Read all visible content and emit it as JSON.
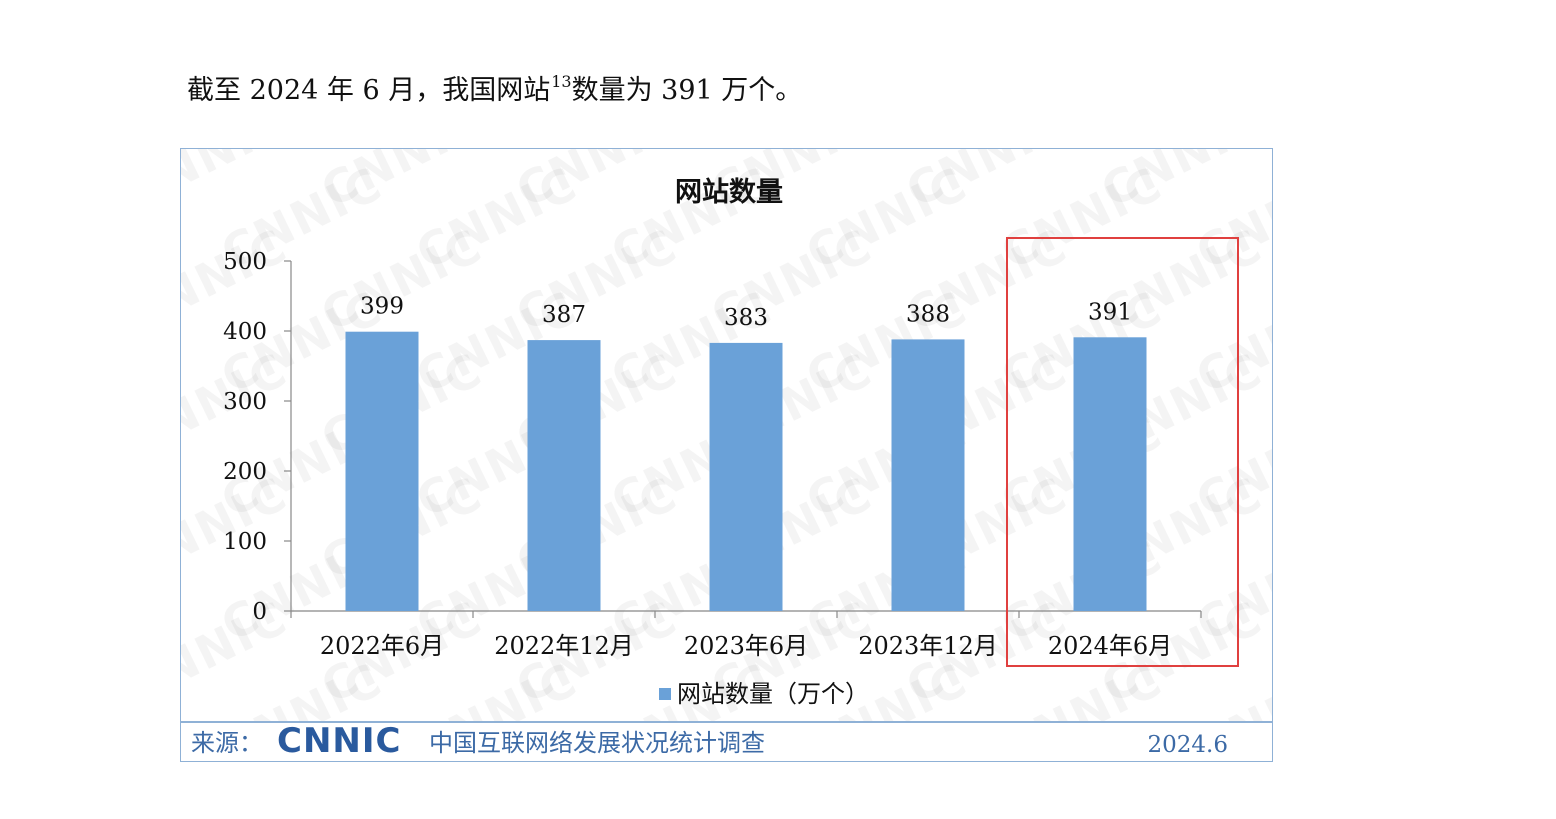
{
  "intro": {
    "text_before": "截至 2024 年 6 月，我国网站",
    "footnote_ref": "13",
    "text_after": "数量为 391 万个。"
  },
  "watermark": {
    "text": "CNNIC"
  },
  "chart_data": {
    "type": "bar",
    "title": "网站数量",
    "categories": [
      "2022年6月",
      "2022年12月",
      "2023年6月",
      "2023年12月",
      "2024年6月"
    ],
    "series": [
      {
        "name": "网站数量（万个）",
        "values": [
          399,
          387,
          383,
          388,
          391
        ],
        "color": "#6aa1d8"
      }
    ],
    "ylim": [
      0,
      500
    ],
    "yticks": [
      0,
      100,
      200,
      300,
      400,
      500
    ],
    "data_labels": true,
    "grid": false,
    "legend": "bottom",
    "highlighted_category": "2024年6月",
    "highlight_color": "#e0403f"
  },
  "source": {
    "label": "来源：",
    "logo_text": "CNNIC",
    "name": "中国互联网络发展状况统计调查",
    "date": "2024.6"
  }
}
